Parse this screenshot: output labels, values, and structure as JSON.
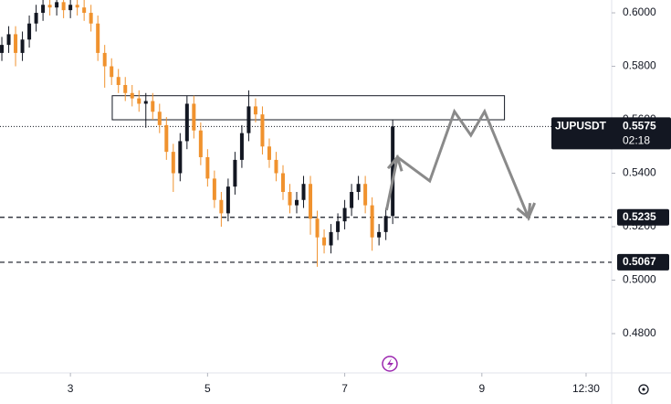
{
  "chart_data": {
    "type": "candlestick",
    "symbol": "JUPUSDT",
    "countdown": "02:18",
    "last_price": 0.5575,
    "up_color": "#131722",
    "down_color": "#f0922e",
    "x": [
      2.0,
      2.1,
      2.2,
      2.3,
      2.4,
      2.5,
      2.6,
      2.7,
      2.8,
      2.9,
      3.0,
      3.1,
      3.2,
      3.3,
      3.4,
      3.5,
      3.6,
      3.7,
      3.8,
      3.9,
      4.0,
      4.1,
      4.2,
      4.3,
      4.4,
      4.5,
      4.6,
      4.7,
      4.8,
      4.9,
      5.0,
      5.1,
      5.2,
      5.3,
      5.4,
      5.5,
      5.6,
      5.7,
      5.8,
      5.9,
      6.0,
      6.1,
      6.2,
      6.3,
      6.4,
      6.5,
      6.6,
      6.7,
      6.8,
      6.9,
      7.0,
      7.1,
      7.2,
      7.3,
      7.4,
      7.5,
      7.6,
      7.7
    ],
    "open": [
      0.585,
      0.588,
      0.592,
      0.585,
      0.59,
      0.596,
      0.6,
      0.603,
      0.602,
      0.604,
      0.601,
      0.603,
      0.602,
      0.6,
      0.596,
      0.585,
      0.58,
      0.576,
      0.573,
      0.57,
      0.568,
      0.566,
      0.567,
      0.563,
      0.558,
      0.548,
      0.54,
      0.552,
      0.566,
      0.556,
      0.546,
      0.538,
      0.53,
      0.525,
      0.535,
      0.545,
      0.555,
      0.565,
      0.562,
      0.55,
      0.545,
      0.54,
      0.533,
      0.528,
      0.53,
      0.536,
      0.523,
      0.516,
      0.513,
      0.518,
      0.522,
      0.527,
      0.533,
      0.536,
      0.528,
      0.516,
      0.518,
      0.524
    ],
    "high": [
      0.591,
      0.595,
      0.595,
      0.593,
      0.599,
      0.603,
      0.606,
      0.606,
      0.607,
      0.607,
      0.606,
      0.606,
      0.605,
      0.603,
      0.599,
      0.588,
      0.583,
      0.579,
      0.576,
      0.573,
      0.571,
      0.57,
      0.57,
      0.566,
      0.561,
      0.551,
      0.555,
      0.569,
      0.569,
      0.559,
      0.549,
      0.541,
      0.533,
      0.538,
      0.548,
      0.558,
      0.571,
      0.568,
      0.565,
      0.553,
      0.548,
      0.543,
      0.536,
      0.533,
      0.539,
      0.539,
      0.526,
      0.519,
      0.521,
      0.525,
      0.53,
      0.536,
      0.539,
      0.539,
      0.531,
      0.521,
      0.527,
      0.56
    ],
    "low": [
      0.582,
      0.585,
      0.58,
      0.582,
      0.587,
      0.593,
      0.597,
      0.599,
      0.599,
      0.598,
      0.598,
      0.599,
      0.597,
      0.593,
      0.582,
      0.572,
      0.573,
      0.57,
      0.567,
      0.565,
      0.563,
      0.557,
      0.56,
      0.555,
      0.545,
      0.533,
      0.537,
      0.549,
      0.553,
      0.543,
      0.535,
      0.527,
      0.52,
      0.522,
      0.532,
      0.542,
      0.552,
      0.559,
      0.547,
      0.542,
      0.537,
      0.53,
      0.525,
      0.525,
      0.527,
      0.517,
      0.505,
      0.51,
      0.51,
      0.515,
      0.519,
      0.524,
      0.53,
      0.525,
      0.511,
      0.513,
      0.515,
      0.521
    ],
    "close": [
      0.588,
      0.592,
      0.585,
      0.59,
      0.596,
      0.6,
      0.603,
      0.602,
      0.604,
      0.601,
      0.603,
      0.602,
      0.6,
      0.596,
      0.585,
      0.58,
      0.576,
      0.573,
      0.57,
      0.568,
      0.566,
      0.567,
      0.563,
      0.558,
      0.548,
      0.54,
      0.552,
      0.566,
      0.556,
      0.546,
      0.538,
      0.53,
      0.525,
      0.535,
      0.545,
      0.555,
      0.565,
      0.562,
      0.55,
      0.545,
      0.54,
      0.533,
      0.528,
      0.53,
      0.536,
      0.523,
      0.516,
      0.513,
      0.518,
      0.522,
      0.527,
      0.533,
      0.536,
      0.528,
      0.516,
      0.518,
      0.524,
      0.5575
    ],
    "xlim": [
      1.973,
      10.893
    ],
    "ylim": [
      0.4653,
      0.6048
    ],
    "xticks": [
      3,
      5,
      7,
      9,
      {
        "value": 10.52,
        "label": "12:30"
      }
    ],
    "yticks": [
      {
        "value": 0.6,
        "label": "0.6000"
      },
      {
        "value": 0.58,
        "label": "0.5800"
      },
      {
        "value": 0.56,
        "label": "0.5600"
      },
      {
        "value": 0.54,
        "label": "0.5400"
      },
      {
        "value": 0.52,
        "label": "0.5200"
      },
      {
        "value": 0.5,
        "label": "0.5000"
      },
      {
        "value": 0.48,
        "label": "0.4800"
      }
    ],
    "zone": {
      "x": [
        3.61,
        9.33
      ],
      "y": [
        0.56,
        0.569
      ]
    },
    "levels": [
      0.5235,
      0.5067
    ],
    "projection": {
      "x": [
        7.61,
        7.77,
        8.24,
        8.6,
        8.84,
        9.04,
        9.68,
        9.77
      ],
      "y": [
        0.5262,
        0.546,
        0.5371,
        0.5631,
        0.5542,
        0.5631,
        0.5234,
        0.5289
      ]
    }
  }
}
